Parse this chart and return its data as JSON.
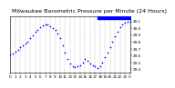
{
  "title": "Milwaukee Barometric Pressure per Minute (24 Hours)",
  "bg_color": "#ffffff",
  "plot_bg": "#ffffff",
  "dot_color": "#0000ff",
  "highlight_color": "#0000ff",
  "dot_size": 1.5,
  "ylim": [
    29.35,
    30.18
  ],
  "xlim": [
    0,
    1440
  ],
  "yticks": [
    29.4,
    29.5,
    29.6,
    29.7,
    29.8,
    29.9,
    30.0,
    30.1
  ],
  "ytick_labels": [
    "29.4",
    "29.5",
    "29.6",
    "29.7",
    "29.8",
    "29.9",
    "30.0",
    "30.1"
  ],
  "xticks": [
    0,
    60,
    120,
    180,
    240,
    300,
    360,
    420,
    480,
    540,
    600,
    660,
    720,
    780,
    840,
    900,
    960,
    1020,
    1080,
    1140,
    1200,
    1260,
    1320,
    1380,
    1440
  ],
  "grid_color": "#aaaaaa",
  "title_fontsize": 4.5,
  "tick_fontsize": 3.0,
  "data_x": [
    0,
    30,
    60,
    90,
    120,
    150,
    180,
    210,
    240,
    270,
    300,
    330,
    360,
    390,
    420,
    450,
    480,
    510,
    540,
    570,
    600,
    630,
    660,
    690,
    720,
    750,
    780,
    810,
    840,
    870,
    900,
    930,
    960,
    990,
    1020,
    1050,
    1080,
    1110,
    1140,
    1170,
    1200,
    1230,
    1260,
    1290,
    1320,
    1350,
    1380,
    1410,
    1440
  ],
  "data_y": [
    29.62,
    29.63,
    29.66,
    29.68,
    29.72,
    29.75,
    29.78,
    29.8,
    29.85,
    29.9,
    29.95,
    29.98,
    30.02,
    30.04,
    30.06,
    30.05,
    30.03,
    30.0,
    29.98,
    29.92,
    29.85,
    29.75,
    29.65,
    29.55,
    29.48,
    29.45,
    29.43,
    29.44,
    29.46,
    29.5,
    29.55,
    29.52,
    29.48,
    29.46,
    29.44,
    29.42,
    29.45,
    29.5,
    29.58,
    29.65,
    29.72,
    29.8,
    29.88,
    29.95,
    30.02,
    30.05,
    30.08,
    30.1,
    30.1
  ],
  "highlight_xstart": 1050,
  "highlight_xend": 1440,
  "text_color": "#000000",
  "border_color": "#000000",
  "hour_labels": [
    "0",
    "1",
    "2",
    "3",
    "4",
    "5",
    "6",
    "7",
    "8",
    "9",
    "10",
    "11",
    "12",
    "13",
    "14",
    "15",
    "16",
    "17",
    "18",
    "19",
    "20",
    "21",
    "22",
    "23",
    "0"
  ]
}
